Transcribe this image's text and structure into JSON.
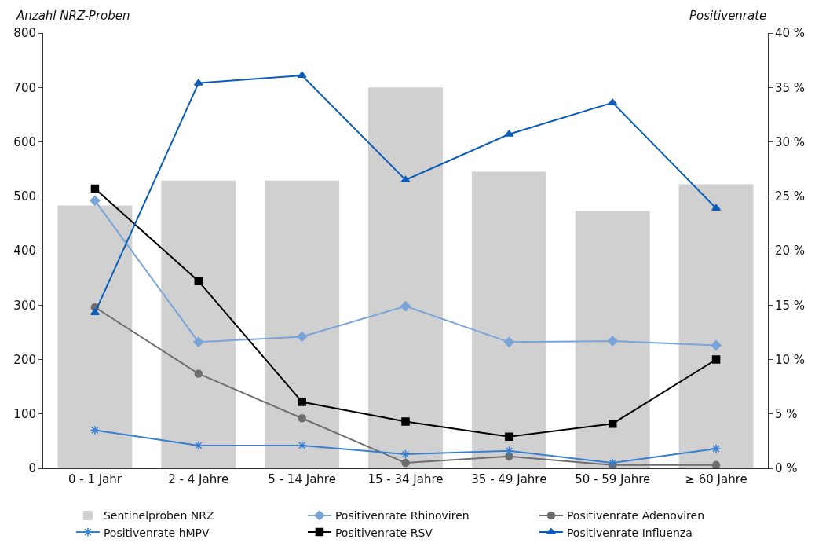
{
  "chart_data": {
    "type": "bar",
    "ylabel": "Anzahl NRZ-Proben",
    "y2label": "Positivenrate",
    "categories": [
      "0 - 1 Jahr",
      "2 - 4 Jahre",
      "5 - 14 Jahre",
      "15 - 34 Jahre",
      "35 - 49 Jahre",
      "50 - 59 Jahre",
      "≥ 60 Jahre"
    ],
    "series": [
      {
        "name": "Sentinelproben NRZ",
        "color": "#d0d0d0",
        "values": [
          483,
          529,
          529,
          700,
          545,
          473,
          522
        ]
      },
      {
        "name": "Positivenrate Rhinoviren",
        "type": "line",
        "axis": "y2",
        "marker": "diamond",
        "color": "#7aa3d8",
        "values": [
          24.6,
          11.6,
          12.1,
          14.9,
          11.6,
          11.7,
          11.3
        ]
      },
      {
        "name": "Positivenrate Adenoviren",
        "type": "line",
        "axis": "y2",
        "marker": "circle",
        "color": "#6e6e6e",
        "values": [
          14.8,
          8.7,
          4.6,
          0.5,
          1.1,
          0.3,
          0.3
        ]
      },
      {
        "name": "Positivenrate hMPV",
        "type": "line",
        "axis": "y2",
        "marker": "cross",
        "color": "#3a7fd0",
        "values": [
          3.5,
          2.1,
          2.1,
          1.3,
          1.6,
          0.5,
          1.8
        ]
      },
      {
        "name": "Positivenrate RSV",
        "type": "line",
        "axis": "y2",
        "marker": "square",
        "color": "#000000",
        "values": [
          25.7,
          17.2,
          6.1,
          4.3,
          2.9,
          4.1,
          10.0
        ]
      },
      {
        "name": "Positivenrate Influenza",
        "type": "line",
        "axis": "y2",
        "marker": "triangle",
        "color": "#0a5cb8",
        "values": [
          14.3,
          35.4,
          36.1,
          26.5,
          30.7,
          33.6,
          23.9
        ]
      }
    ],
    "ylim": [
      0,
      800
    ],
    "yticks": [
      0,
      100,
      200,
      300,
      400,
      500,
      600,
      700,
      800
    ],
    "y2lim": [
      0,
      40
    ],
    "y2ticks": [
      {
        "value": 0,
        "label": "0 %"
      },
      {
        "value": 5,
        "label": "5 %"
      },
      {
        "value": 10,
        "label": "10 %"
      },
      {
        "value": 15,
        "label": "15 %"
      },
      {
        "value": 20,
        "label": "20 %"
      },
      {
        "value": 25,
        "label": "25 %"
      },
      {
        "value": 30,
        "label": "30 %"
      },
      {
        "value": 35,
        "label": "35 %"
      },
      {
        "value": 40,
        "label": "40 %"
      }
    ],
    "grid": false,
    "legend": "bottom",
    "line_style": "solid"
  }
}
